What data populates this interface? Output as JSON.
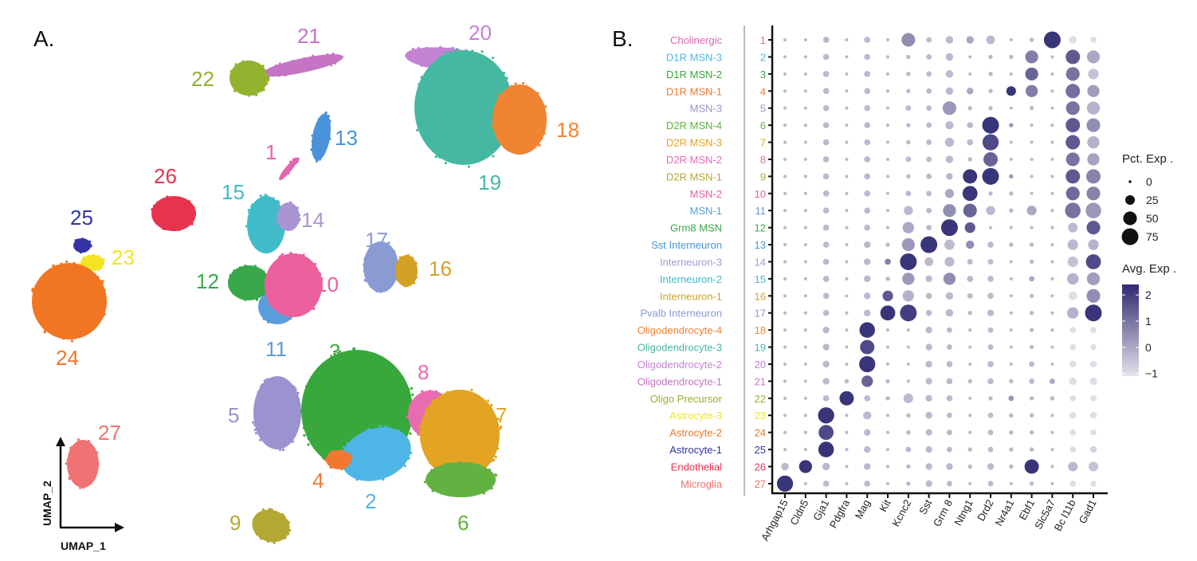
{
  "panels": {
    "a_label": "A.",
    "b_label": "B."
  },
  "chart_data": [
    {
      "type": "scatter",
      "title": "",
      "xlabel": "UMAP_1",
      "ylabel": "UMAP_2",
      "clusters": [
        {
          "id": "1",
          "color": "#e066b0"
        },
        {
          "id": "2",
          "color": "#4db6e6"
        },
        {
          "id": "3",
          "color": "#38a83c"
        },
        {
          "id": "4",
          "color": "#f07830"
        },
        {
          "id": "5",
          "color": "#9b92d0"
        },
        {
          "id": "6",
          "color": "#62b242"
        },
        {
          "id": "7",
          "color": "#e3a424"
        },
        {
          "id": "8",
          "color": "#ea6cb0"
        },
        {
          "id": "9",
          "color": "#b3a834"
        },
        {
          "id": "10",
          "color": "#ea5f9c"
        },
        {
          "id": "11",
          "color": "#5b9ddb"
        },
        {
          "id": "12",
          "color": "#38a84a"
        },
        {
          "id": "13",
          "color": "#4a92da"
        },
        {
          "id": "14",
          "color": "#a995d2"
        },
        {
          "id": "15",
          "color": "#3fbcc8"
        },
        {
          "id": "16",
          "color": "#d3a224"
        },
        {
          "id": "17",
          "color": "#8a9ad2"
        },
        {
          "id": "18",
          "color": "#f08432"
        },
        {
          "id": "19",
          "color": "#45b8a2"
        },
        {
          "id": "20",
          "color": "#c483d2"
        },
        {
          "id": "21",
          "color": "#c575c4"
        },
        {
          "id": "22",
          "color": "#93b22e"
        },
        {
          "id": "23",
          "color": "#f2e424"
        },
        {
          "id": "24",
          "color": "#f07624"
        },
        {
          "id": "25",
          "color": "#3434a4"
        },
        {
          "id": "26",
          "color": "#e6344f"
        },
        {
          "id": "27",
          "color": "#f07272"
        }
      ]
    },
    {
      "type": "dot",
      "title": "",
      "genes": [
        "Arhgap15",
        "Cldn5",
        "Gja1",
        "Pdgfra",
        "Mag",
        "Kit",
        "Kcnc2",
        "Sst",
        "Grm 8",
        "Ntng1",
        "Drd2",
        "Nr4a1",
        "Ebf1",
        "Slc5a7",
        "Bc l11b",
        "Gad1"
      ],
      "rows": [
        {
          "name": "Cholinergic",
          "id": "1",
          "color": "#e066b0"
        },
        {
          "name": "D1R MSN-3",
          "id": "2",
          "color": "#4db6e6"
        },
        {
          "name": "D1R MSN-2",
          "id": "3",
          "color": "#38a83c"
        },
        {
          "name": "D1R MSN-1",
          "id": "4",
          "color": "#f07830"
        },
        {
          "name": "MSN-3",
          "id": "5",
          "color": "#9b92d0"
        },
        {
          "name": "D2R MSN-4",
          "id": "6",
          "color": "#62b242"
        },
        {
          "name": "D2R MSN-3",
          "id": "7",
          "color": "#e3a424"
        },
        {
          "name": "D2R MSN-2",
          "id": "8",
          "color": "#ea6cb0"
        },
        {
          "name": "D2R MSN-1",
          "id": "9",
          "color": "#b3a834"
        },
        {
          "name": "MSN-2",
          "id": "10",
          "color": "#ea5f9c"
        },
        {
          "name": "MSN-1",
          "id": "11",
          "color": "#5b9ddb"
        },
        {
          "name": "Grm8 MSN",
          "id": "12",
          "color": "#38a84a"
        },
        {
          "name": "Sst Interneuron",
          "id": "13",
          "color": "#4a92da"
        },
        {
          "name": "Interneuron-3",
          "id": "14",
          "color": "#a995d2"
        },
        {
          "name": "Interneuron-2",
          "id": "15",
          "color": "#3fbcc8"
        },
        {
          "name": "Interneuron-1",
          "id": "16",
          "color": "#d3a224"
        },
        {
          "name": "Pvalb Interneuron",
          "id": "17",
          "color": "#8a9ad2"
        },
        {
          "name": "Oligodendrocyte-4",
          "id": "18",
          "color": "#f08432"
        },
        {
          "name": "Oligodendrocyte-3",
          "id": "19",
          "color": "#45b8a2"
        },
        {
          "name": "Oligodendrocyte-2",
          "id": "20",
          "color": "#c483d2"
        },
        {
          "name": "Oligodendrocyte-1",
          "id": "21",
          "color": "#c575c4"
        },
        {
          "name": "Oligo Precursor",
          "id": "22",
          "color": "#93b22e"
        },
        {
          "name": "Astrocyte-3",
          "id": "23",
          "color": "#f2e424"
        },
        {
          "name": "Astrocyte-2",
          "id": "24",
          "color": "#f07624"
        },
        {
          "name": "Astrocyte-1",
          "id": "25",
          "color": "#3434a4"
        },
        {
          "name": "Endothelial",
          "id": "26",
          "color": "#e6344f"
        },
        {
          "name": "Microglia",
          "id": "27",
          "color": "#f07272"
        }
      ],
      "pct_exp": [
        [
          3,
          3,
          10,
          3,
          10,
          3,
          50,
          8,
          15,
          15,
          20,
          3,
          5,
          75,
          15,
          10
        ],
        [
          3,
          3,
          10,
          3,
          10,
          3,
          5,
          8,
          15,
          3,
          5,
          5,
          45,
          3,
          55,
          45
        ],
        [
          3,
          3,
          10,
          3,
          10,
          3,
          5,
          8,
          15,
          3,
          5,
          3,
          45,
          3,
          50,
          30
        ],
        [
          3,
          3,
          10,
          3,
          10,
          3,
          5,
          8,
          15,
          12,
          5,
          25,
          40,
          3,
          55,
          40
        ],
        [
          3,
          3,
          10,
          3,
          10,
          3,
          8,
          8,
          50,
          5,
          5,
          3,
          5,
          3,
          50,
          45
        ],
        [
          3,
          3,
          10,
          3,
          10,
          3,
          5,
          8,
          18,
          10,
          75,
          5,
          3,
          3,
          55,
          50
        ],
        [
          3,
          3,
          10,
          3,
          10,
          3,
          5,
          8,
          22,
          10,
          70,
          3,
          3,
          3,
          55,
          40
        ],
        [
          3,
          3,
          10,
          3,
          10,
          3,
          8,
          8,
          15,
          5,
          55,
          3,
          3,
          3,
          50,
          40
        ],
        [
          3,
          3,
          10,
          3,
          10,
          3,
          5,
          8,
          12,
          55,
          75,
          5,
          3,
          3,
          55,
          55
        ],
        [
          3,
          3,
          10,
          3,
          10,
          3,
          8,
          8,
          22,
          60,
          5,
          5,
          3,
          3,
          50,
          50
        ],
        [
          3,
          3,
          10,
          3,
          10,
          3,
          22,
          8,
          45,
          50,
          22,
          5,
          25,
          3,
          65,
          65
        ],
        [
          3,
          3,
          10,
          3,
          10,
          3,
          35,
          8,
          75,
          30,
          3,
          3,
          3,
          3,
          25,
          50
        ],
        [
          3,
          3,
          10,
          3,
          12,
          5,
          45,
          75,
          28,
          18,
          10,
          5,
          5,
          3,
          30,
          30
        ],
        [
          3,
          3,
          10,
          3,
          12,
          10,
          75,
          20,
          25,
          8,
          8,
          3,
          5,
          3,
          30,
          60
        ],
        [
          3,
          3,
          10,
          3,
          12,
          5,
          40,
          12,
          40,
          10,
          10,
          3,
          8,
          3,
          35,
          45
        ],
        [
          3,
          3,
          10,
          3,
          12,
          30,
          35,
          10,
          15,
          8,
          10,
          3,
          5,
          3,
          20,
          50
        ],
        [
          3,
          3,
          10,
          3,
          12,
          60,
          75,
          10,
          15,
          5,
          12,
          3,
          5,
          3,
          35,
          75
        ],
        [
          3,
          3,
          12,
          3,
          65,
          3,
          3,
          12,
          8,
          3,
          8,
          3,
          5,
          3,
          10,
          10
        ],
        [
          3,
          3,
          12,
          3,
          55,
          3,
          3,
          12,
          8,
          3,
          8,
          3,
          5,
          3,
          10,
          10
        ],
        [
          3,
          3,
          12,
          3,
          70,
          3,
          3,
          12,
          10,
          3,
          10,
          3,
          8,
          3,
          12,
          12
        ],
        [
          3,
          3,
          12,
          5,
          35,
          5,
          3,
          12,
          10,
          5,
          10,
          5,
          8,
          8,
          15,
          15
        ],
        [
          3,
          3,
          10,
          55,
          10,
          5,
          25,
          12,
          10,
          3,
          5,
          8,
          5,
          5,
          10,
          10
        ],
        [
          3,
          3,
          70,
          3,
          18,
          3,
          5,
          12,
          8,
          3,
          8,
          5,
          5,
          3,
          12,
          12
        ],
        [
          3,
          3,
          60,
          3,
          12,
          3,
          5,
          12,
          8,
          3,
          8,
          5,
          5,
          3,
          10,
          10
        ],
        [
          3,
          3,
          65,
          3,
          12,
          3,
          8,
          12,
          8,
          5,
          8,
          5,
          5,
          3,
          10,
          12
        ],
        [
          15,
          45,
          15,
          3,
          12,
          3,
          5,
          12,
          12,
          5,
          12,
          5,
          55,
          3,
          25,
          25
        ],
        [
          70,
          3,
          10,
          3,
          10,
          3,
          5,
          12,
          8,
          3,
          8,
          3,
          5,
          3,
          10,
          10
        ]
      ],
      "avg_exp": [
        [
          -0.3,
          -0.3,
          -0.3,
          -0.3,
          -0.3,
          -0.3,
          0.5,
          -0.3,
          -0.3,
          0,
          -0.3,
          -0.3,
          -0.3,
          2.2,
          -1,
          -1
        ],
        [
          -0.3,
          -0.3,
          -0.3,
          -0.3,
          -0.3,
          -0.3,
          -0.3,
          -0.3,
          -0.3,
          -0.3,
          -0.3,
          -0.3,
          0.8,
          -0.3,
          1.5,
          0
        ],
        [
          -0.3,
          -0.3,
          -0.3,
          -0.3,
          -0.3,
          -0.3,
          -0.3,
          -0.3,
          -0.3,
          -0.3,
          -0.3,
          -0.3,
          1.3,
          -0.3,
          1.0,
          -0.5
        ],
        [
          -0.3,
          -0.3,
          -0.3,
          -0.3,
          -0.3,
          -0.3,
          -0.3,
          -0.3,
          -0.3,
          0,
          -0.3,
          2.2,
          0.8,
          -0.3,
          1.1,
          0.2
        ],
        [
          -0.3,
          -0.3,
          -0.3,
          -0.3,
          -0.3,
          -0.3,
          -0.3,
          -0.3,
          0.3,
          -0.3,
          -0.3,
          -0.3,
          -0.3,
          -0.3,
          1.0,
          -0.2
        ],
        [
          -0.3,
          -0.3,
          -0.3,
          -0.3,
          -0.3,
          -0.3,
          -0.3,
          -0.3,
          -0.3,
          -0.3,
          2.2,
          0.3,
          -0.3,
          -0.3,
          1.5,
          0.5
        ],
        [
          -0.3,
          -0.3,
          -0.3,
          -0.3,
          -0.3,
          -0.3,
          -0.3,
          -0.3,
          -0.3,
          -0.3,
          1.8,
          -0.3,
          -0.3,
          -0.3,
          1.5,
          -0.2
        ],
        [
          -0.3,
          -0.3,
          -0.3,
          -0.3,
          -0.3,
          -0.3,
          -0.3,
          -0.3,
          -0.3,
          -0.3,
          1.3,
          -0.3,
          -0.3,
          -0.3,
          1.0,
          0.1
        ],
        [
          -0.3,
          -0.3,
          -0.3,
          -0.3,
          -0.3,
          -0.3,
          -0.3,
          -0.3,
          -0.3,
          2.2,
          2.2,
          0.3,
          -0.3,
          -0.3,
          1.5,
          0.7
        ],
        [
          -0.3,
          -0.3,
          -0.3,
          -0.3,
          -0.3,
          -0.3,
          -0.3,
          -0.3,
          0,
          2.2,
          -0.3,
          -0.3,
          -0.3,
          -0.3,
          1.2,
          0.7
        ],
        [
          -0.3,
          -0.3,
          -0.3,
          -0.3,
          -0.3,
          -0.3,
          -0.3,
          -0.3,
          0.5,
          1.3,
          -0.3,
          -0.3,
          0,
          -0.3,
          1.0,
          0.3
        ],
        [
          -0.3,
          -0.3,
          -0.3,
          -0.3,
          -0.3,
          -0.3,
          0,
          -0.3,
          2.2,
          1.5,
          -0.3,
          -0.3,
          -0.3,
          -0.3,
          -0.3,
          1.5
        ],
        [
          -0.3,
          -0.3,
          -0.3,
          -0.3,
          -0.3,
          -0.3,
          0.3,
          2.2,
          -0.3,
          0.5,
          -0.3,
          -0.3,
          -0.3,
          -0.3,
          -0.3,
          -0.2
        ],
        [
          -0.3,
          -0.3,
          -0.3,
          -0.3,
          -0.3,
          0.8,
          2.2,
          -0.3,
          -0.3,
          -0.3,
          -0.3,
          -0.3,
          -0.3,
          -0.3,
          -0.5,
          1.8
        ],
        [
          -0.3,
          -0.3,
          -0.3,
          -0.3,
          -0.3,
          -0.3,
          0.3,
          -0.3,
          0.5,
          -0.3,
          -0.3,
          -0.3,
          0,
          -0.3,
          -0.2,
          0.2
        ],
        [
          -0.3,
          -0.3,
          -0.3,
          -0.3,
          -0.3,
          1.5,
          -0.2,
          -0.3,
          -0.3,
          -0.3,
          -0.3,
          -0.3,
          -0.3,
          -0.3,
          -1,
          0.5
        ],
        [
          -0.3,
          -0.3,
          -0.3,
          -0.3,
          -0.3,
          2.2,
          2.0,
          -0.3,
          -0.3,
          -0.3,
          -0.3,
          -0.3,
          -0.3,
          -0.3,
          -0.2,
          2.2
        ],
        [
          -0.3,
          -0.3,
          -0.3,
          -0.3,
          2.2,
          -0.3,
          -0.3,
          -0.3,
          -0.3,
          -0.3,
          -0.3,
          -0.3,
          -0.3,
          -0.3,
          -1,
          -1
        ],
        [
          -0.3,
          -0.3,
          -0.3,
          -0.3,
          1.8,
          -0.3,
          -0.3,
          -0.3,
          -0.3,
          -0.3,
          -0.3,
          -0.3,
          -0.3,
          -0.3,
          -1,
          -1
        ],
        [
          -0.3,
          -0.3,
          -0.3,
          -0.3,
          2.2,
          -0.3,
          -0.3,
          -0.3,
          -0.3,
          -0.3,
          -0.3,
          -0.3,
          -0.3,
          -0.3,
          -1,
          -1
        ],
        [
          -0.3,
          -0.3,
          -0.3,
          -0.3,
          1.3,
          -0.3,
          -0.3,
          -0.3,
          -0.3,
          -0.3,
          -0.3,
          -0.3,
          -0.3,
          0,
          -1,
          -1
        ],
        [
          -0.3,
          -0.3,
          -0.3,
          2.2,
          -0.3,
          -0.3,
          -0.3,
          -0.3,
          -0.3,
          -0.3,
          -0.3,
          0.3,
          -0.3,
          -0.3,
          -1,
          -1
        ],
        [
          -0.3,
          -0.3,
          2.2,
          -0.3,
          -0.3,
          -0.3,
          -0.3,
          -0.3,
          -0.3,
          -0.3,
          -0.3,
          -0.3,
          -0.3,
          -0.3,
          -1,
          -1
        ],
        [
          -0.3,
          -0.3,
          1.8,
          -0.3,
          -0.3,
          -0.3,
          -0.3,
          -0.3,
          -0.3,
          -0.3,
          -0.3,
          -0.3,
          -0.3,
          -0.3,
          -1,
          -1
        ],
        [
          -0.3,
          -0.3,
          2.2,
          -0.3,
          -0.3,
          -0.3,
          -0.3,
          -0.3,
          -0.3,
          -0.3,
          -0.3,
          -0.3,
          -0.3,
          -0.3,
          -1,
          -0.8
        ],
        [
          -0.3,
          2.2,
          -0.3,
          -0.3,
          -0.3,
          -0.3,
          -0.3,
          -0.3,
          -0.3,
          -0.3,
          -0.3,
          -0.3,
          2.2,
          -0.3,
          -0.3,
          -0.5
        ],
        [
          2.2,
          -0.3,
          -0.3,
          -0.3,
          -0.3,
          -0.3,
          -0.3,
          -0.3,
          -0.3,
          -0.3,
          -0.3,
          -0.3,
          -0.3,
          -0.3,
          -1,
          -1
        ]
      ],
      "size_legend": {
        "title": "Pct. Exp .",
        "values": [
          0,
          25,
          50,
          75
        ],
        "labels": [
          "0",
          "25",
          "50",
          "75"
        ]
      },
      "color_legend": {
        "title": "Avg. Exp .",
        "range": [
          -1.1,
          2.4
        ],
        "ticks": [
          2,
          1,
          0,
          -1
        ],
        "tick_labels": [
          "2",
          "1",
          "0",
          "−1"
        ],
        "low_color": "#e4e2ea",
        "high_color": "#2f2a72"
      }
    }
  ]
}
